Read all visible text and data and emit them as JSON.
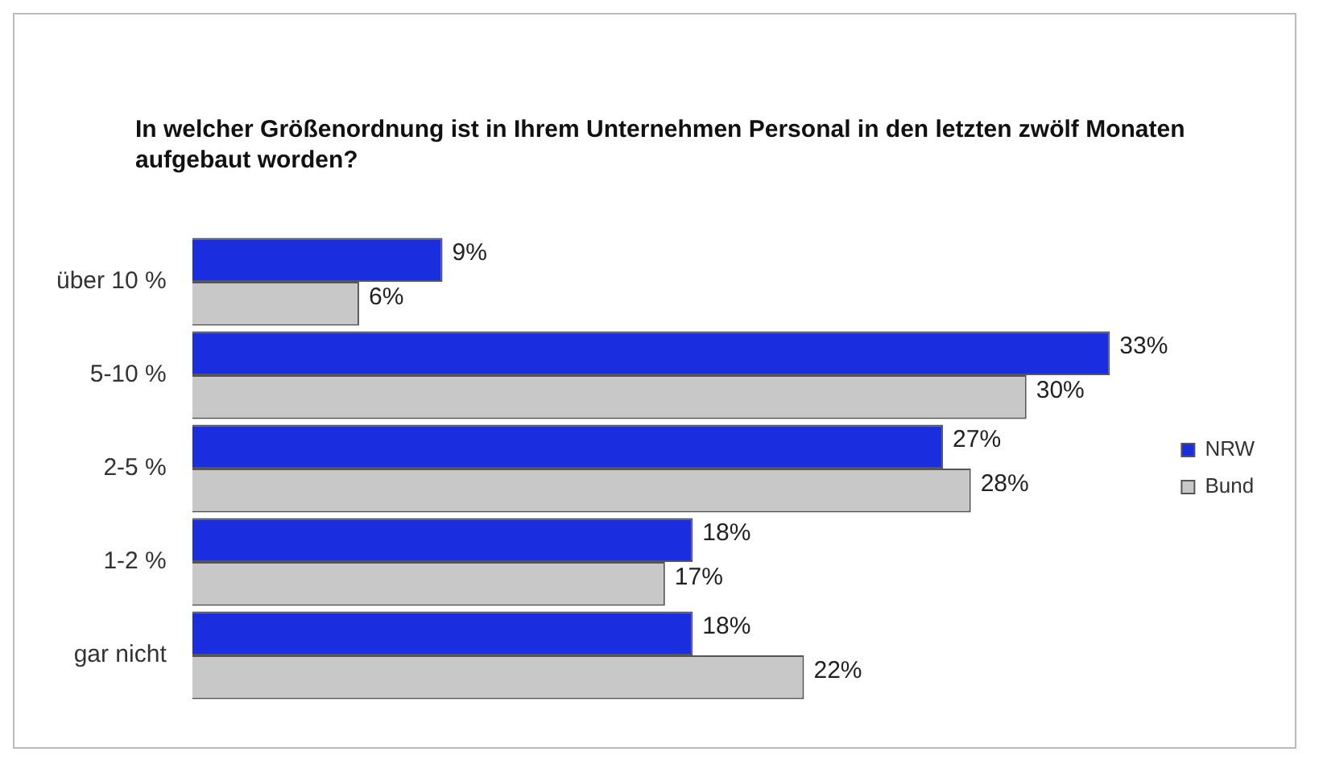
{
  "chart_data": {
    "type": "bar",
    "orientation": "horizontal",
    "title": "In welcher Größenordnung ist in Ihrem Unternehmen Personal in den letzten zwölf Monaten aufgebaut worden?",
    "categories": [
      "über 10 %",
      "5-10 %",
      "2-5 %",
      "1-2 %",
      "gar nicht"
    ],
    "series": [
      {
        "name": "NRW",
        "color": "#1a2ee0",
        "values": [
          9,
          33,
          27,
          18,
          18
        ],
        "value_labels": [
          "9%",
          "33%",
          "27%",
          "18%",
          "18%"
        ]
      },
      {
        "name": "Bund",
        "color": "#c8c8c8",
        "values": [
          6,
          30,
          28,
          17,
          22
        ],
        "value_labels": [
          "6%",
          "30%",
          "28%",
          "17%",
          "22%"
        ]
      }
    ],
    "grid": false,
    "legend": "right",
    "tick_labels": "y"
  }
}
